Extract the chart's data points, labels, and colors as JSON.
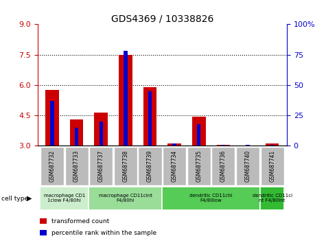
{
  "title": "GDS4369 / 10338826",
  "samples": [
    "GSM687732",
    "GSM687733",
    "GSM687737",
    "GSM687738",
    "GSM687739",
    "GSM687734",
    "GSM687735",
    "GSM687736",
    "GSM687740",
    "GSM687741"
  ],
  "transformed_count": [
    5.75,
    4.3,
    4.65,
    7.5,
    5.9,
    3.1,
    4.45,
    3.05,
    3.02,
    3.1
  ],
  "percentile_rank": [
    37,
    15,
    20,
    78,
    45,
    2,
    18,
    1,
    1,
    1
  ],
  "ylim_left": [
    3,
    9
  ],
  "ylim_right": [
    0,
    100
  ],
  "yticks_left": [
    3,
    4.5,
    6,
    7.5,
    9
  ],
  "yticks_right": [
    0,
    25,
    50,
    75,
    100
  ],
  "yticklabels_right": [
    "0",
    "25",
    "50",
    "75",
    "100%"
  ],
  "bar_color_red": "#cc0000",
  "bar_color_blue": "#0000cc",
  "grid_dotted_at": [
    4.5,
    6.0,
    7.5
  ],
  "cell_type_groups": [
    {
      "label": "macrophage CD1\n1clow F4/80hi",
      "start": 0,
      "end": 2,
      "color": "#cceecc"
    },
    {
      "label": "macrophage CD11cint\nF4/80hi",
      "start": 2,
      "end": 5,
      "color": "#99dd99"
    },
    {
      "label": "dendritic CD11chi\nF4/80low",
      "start": 5,
      "end": 9,
      "color": "#55cc55"
    },
    {
      "label": "dendritic CD11ci\nnt F4/80int",
      "start": 9,
      "end": 10,
      "color": "#33bb33"
    }
  ],
  "legend_items": [
    {
      "label": "transformed count",
      "color": "#cc0000"
    },
    {
      "label": "percentile rank within the sample",
      "color": "#0000cc"
    }
  ],
  "ylabel_left_color": "#cc0000",
  "ylabel_right_color": "#0000cc",
  "tick_bg_color": "#bbbbbb",
  "title_fontsize": 10
}
